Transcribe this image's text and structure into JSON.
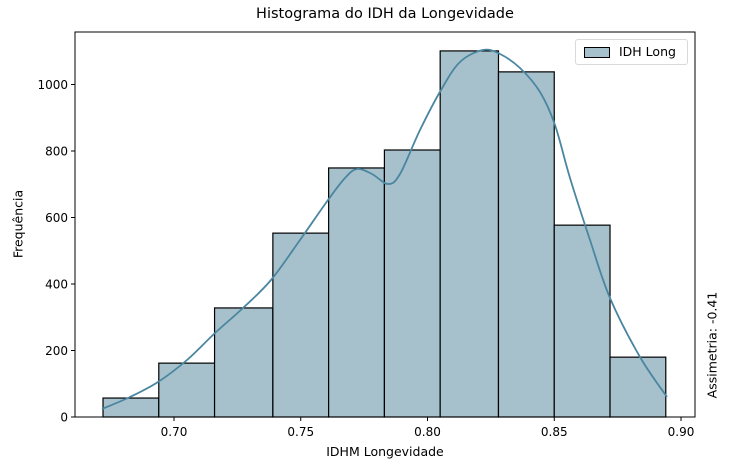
{
  "chart_data": {
    "type": "bar",
    "subtype": "histogram_with_kde",
    "title": "Histograma do IDH da Longevidade",
    "xlabel": "IDHM Longevidade",
    "ylabel": "Frequência",
    "xlim": [
      0.661,
      0.905
    ],
    "ylim": [
      0,
      1155
    ],
    "xticks": [
      "0.70",
      "0.75",
      "0.80",
      "0.85",
      "0.90"
    ],
    "yticks": [
      "0",
      "200",
      "400",
      "600",
      "800",
      "1000"
    ],
    "bin_edges": [
      0.672,
      0.694,
      0.716,
      0.739,
      0.761,
      0.783,
      0.805,
      0.828,
      0.85,
      0.872,
      0.894
    ],
    "categories": [
      "0.672-0.694",
      "0.694-0.716",
      "0.716-0.739",
      "0.739-0.761",
      "0.761-0.783",
      "0.783-0.805",
      "0.805-0.828",
      "0.828-0.850",
      "0.850-0.872",
      "0.872-0.894"
    ],
    "series": [
      {
        "name": "IDH Long",
        "values": [
          57,
          162,
          328,
          553,
          749,
          803,
          1101,
          1038,
          577,
          180
        ]
      }
    ],
    "kde": true,
    "legend": {
      "position": "upper right",
      "entries": [
        "IDH Long"
      ]
    },
    "annotation": "Assimetria: -0.41",
    "grid": false,
    "colors": {
      "bar_fill": "#a6c1cc",
      "bar_edge": "#000000",
      "kde_line": "#4b86a0"
    }
  },
  "legend": {
    "label": "IDH Long"
  }
}
